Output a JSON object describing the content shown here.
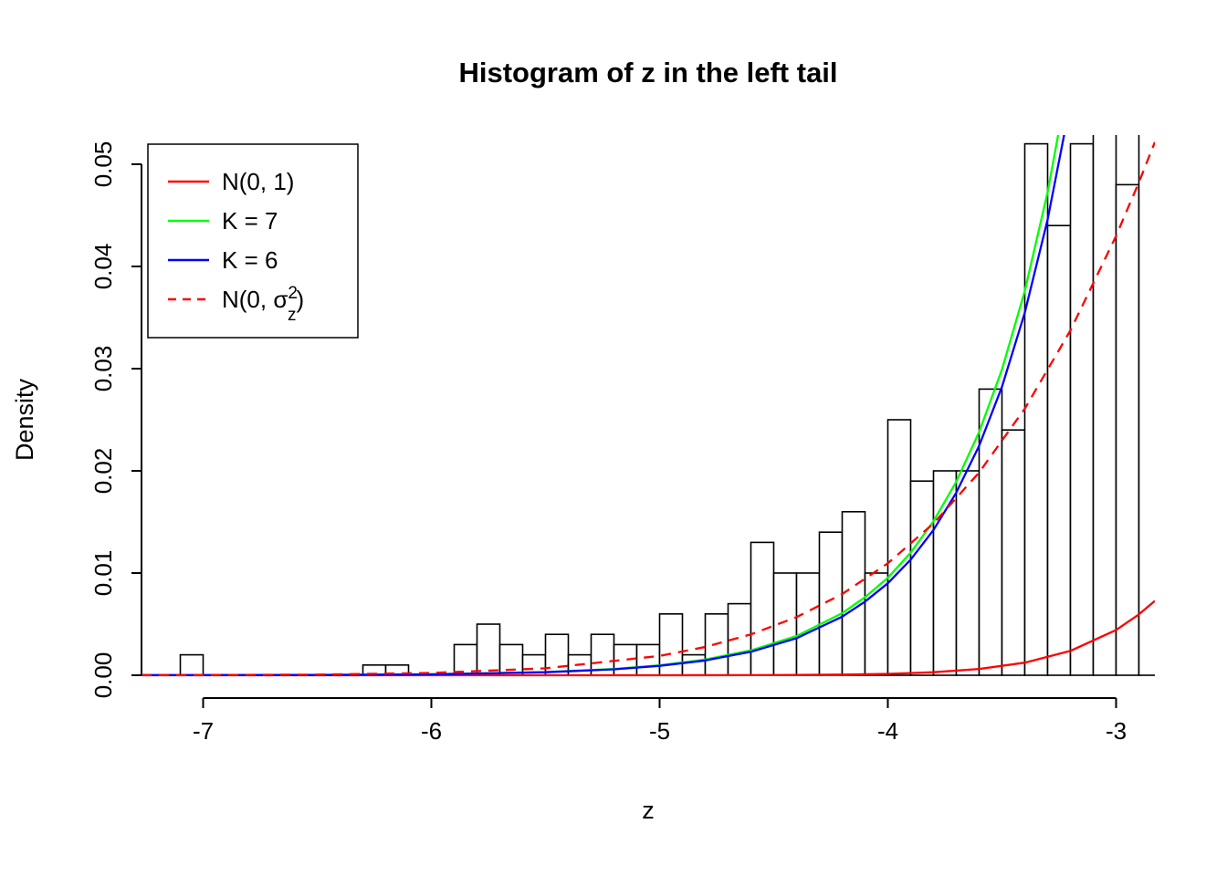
{
  "title": "Histogram of z in the left tail",
  "axes": {
    "x": {
      "label": "z",
      "ticks": [
        -7,
        -6,
        -5,
        -4,
        -3
      ],
      "tick_labels": [
        "-7",
        "-6",
        "-5",
        "-4",
        "-3"
      ]
    },
    "y": {
      "label": "Density",
      "ticks": [
        0,
        0.01,
        0.02,
        0.03,
        0.04,
        0.05
      ],
      "tick_labels": [
        "0.00",
        "0.01",
        "0.02",
        "0.03",
        "0.04",
        "0.05"
      ]
    }
  },
  "legend": {
    "items": [
      {
        "label": "N(0, 1)",
        "color": "#ff0000",
        "linetype": "solid"
      },
      {
        "label": "K = 7",
        "color": "#00ff00",
        "linetype": "solid"
      },
      {
        "label": "K = 6",
        "color": "#0000ff",
        "linetype": "solid"
      },
      {
        "label": "N(0, σz²)",
        "label_parts": {
          "pre": "N(0, σ",
          "sup": "2",
          "sub": "z",
          "post": ")"
        },
        "color": "#ff0000",
        "linetype": "dashed"
      }
    ]
  },
  "chart_data": {
    "type": "bar",
    "subtype": "histogram-with-density-curves",
    "title": "Histogram of z in the left tail",
    "xlabel": "z",
    "ylabel": "Density",
    "xlim": [
      -7.27,
      -2.83
    ],
    "ylim": [
      0,
      0.052
    ],
    "grid": false,
    "legend_position": "topleft",
    "histogram": {
      "bin_width": 0.1,
      "bar_fill": "#ffffff",
      "bar_stroke": "#000000",
      "bins_left_edge": [
        -7.1,
        -7.0,
        -6.9,
        -6.8,
        -6.7,
        -6.6,
        -6.5,
        -6.4,
        -6.3,
        -6.2,
        -6.1,
        -6.0,
        -5.9,
        -5.8,
        -5.7,
        -5.6,
        -5.5,
        -5.4,
        -5.3,
        -5.2,
        -5.1,
        -5.0,
        -4.9,
        -4.8,
        -4.7,
        -4.6,
        -4.5,
        -4.4,
        -4.3,
        -4.2,
        -4.1,
        -4.0,
        -3.9,
        -3.8,
        -3.7,
        -3.6,
        -3.5,
        -3.4,
        -3.3,
        -3.2,
        -3.1,
        -3.0,
        -2.9
      ],
      "density": [
        0.002,
        0,
        0,
        0,
        0,
        0,
        0,
        0,
        0.001,
        0.001,
        0,
        0,
        0.003,
        0.005,
        0.003,
        0.002,
        0.004,
        0.002,
        0.004,
        0.003,
        0.003,
        0.006,
        0.002,
        0.006,
        0.007,
        0.013,
        0.01,
        0.01,
        0.014,
        0.016,
        0.01,
        0.025,
        0.019,
        0.02,
        0.02,
        0.028,
        0.024,
        0.052,
        0.044,
        0.052,
        0.058,
        0.048,
        0.058
      ]
    },
    "series": [
      {
        "name": "N(0, 1)",
        "color": "#ff0000",
        "linetype": "solid",
        "points": [
          [
            -7.27,
            0
          ],
          [
            -6.0,
            0
          ],
          [
            -5.5,
            2e-07
          ],
          [
            -5.0,
            1.5e-06
          ],
          [
            -4.6,
            1e-05
          ],
          [
            -4.4,
            2.5e-05
          ],
          [
            -4.2,
            5.9e-05
          ],
          [
            -4.0,
            0.000134
          ],
          [
            -3.8,
            0.000292
          ],
          [
            -3.6,
            0.000612
          ],
          [
            -3.4,
            0.001232
          ],
          [
            -3.2,
            0.002384
          ],
          [
            -3.0,
            0.004432
          ],
          [
            -2.9,
            0.005953
          ],
          [
            -2.83,
            0.007275
          ]
        ]
      },
      {
        "name": "K = 7",
        "color": "#00ff00",
        "linetype": "solid",
        "points": [
          [
            -7.27,
            5.3e-06
          ],
          [
            -6.5,
            3.2e-05
          ],
          [
            -6.0,
            9.9e-05
          ],
          [
            -5.5,
            0.00031
          ],
          [
            -5.2,
            0.000616
          ],
          [
            -5.0,
            0.000971
          ],
          [
            -4.8,
            0.001536
          ],
          [
            -4.6,
            0.002428
          ],
          [
            -4.4,
            0.00384
          ],
          [
            -4.2,
            0.006073
          ],
          [
            -4.1,
            0.007635
          ],
          [
            -4.0,
            0.00954
          ],
          [
            -3.9,
            0.01199
          ],
          [
            -3.8,
            0.015069
          ],
          [
            -3.7,
            0.018943
          ],
          [
            -3.6,
            0.023802
          ],
          [
            -3.5,
            0.029915
          ],
          [
            -3.4,
            0.037597
          ],
          [
            -3.3,
            0.047255
          ],
          [
            -3.2,
            0.059392
          ],
          [
            -3.1,
            0.074644
          ]
        ]
      },
      {
        "name": "K = 6",
        "color": "#0000ff",
        "linetype": "solid",
        "points": [
          [
            -7.27,
            5e-06
          ],
          [
            -6.5,
            3e-05
          ],
          [
            -6.0,
            9.3e-05
          ],
          [
            -5.5,
            0.000292
          ],
          [
            -5.2,
            0.000581
          ],
          [
            -5.0,
            0.000916
          ],
          [
            -4.8,
            0.001449
          ],
          [
            -4.6,
            0.002291
          ],
          [
            -4.4,
            0.003623
          ],
          [
            -4.2,
            0.005729
          ],
          [
            -4.1,
            0.007203
          ],
          [
            -4.0,
            0.009
          ],
          [
            -3.9,
            0.011311
          ],
          [
            -3.8,
            0.014216
          ],
          [
            -3.7,
            0.017871
          ],
          [
            -3.6,
            0.022455
          ],
          [
            -3.5,
            0.028222
          ],
          [
            -3.4,
            0.035469
          ],
          [
            -3.3,
            0.04458
          ],
          [
            -3.2,
            0.05603
          ],
          [
            -3.1,
            0.070419
          ]
        ]
      },
      {
        "name": "N(0, σz²)",
        "color": "#ff0000",
        "linetype": "dashed",
        "points": [
          [
            -7.27,
            1e-05
          ],
          [
            -7.0,
            1.7e-05
          ],
          [
            -6.5,
            6.5e-05
          ],
          [
            -6.0,
            0.00022
          ],
          [
            -5.5,
            0.000678
          ],
          [
            -5.0,
            0.001889
          ],
          [
            -4.8,
            0.00277
          ],
          [
            -4.6,
            0.004
          ],
          [
            -4.4,
            0.00569
          ],
          [
            -4.2,
            0.00795
          ],
          [
            -4.0,
            0.010955
          ],
          [
            -3.8,
            0.014855
          ],
          [
            -3.6,
            0.019835
          ],
          [
            -3.4,
            0.026076
          ],
          [
            -3.2,
            0.033744
          ],
          [
            -3.0,
            0.042979
          ],
          [
            -2.9,
            0.048229
          ],
          [
            -2.83,
            0.052171
          ]
        ]
      }
    ]
  },
  "colors": {
    "background": "#ffffff",
    "axis": "#000000",
    "bar_outline": "#000000",
    "red": "#ff0000",
    "green": "#00ff00",
    "blue": "#0000ff"
  }
}
